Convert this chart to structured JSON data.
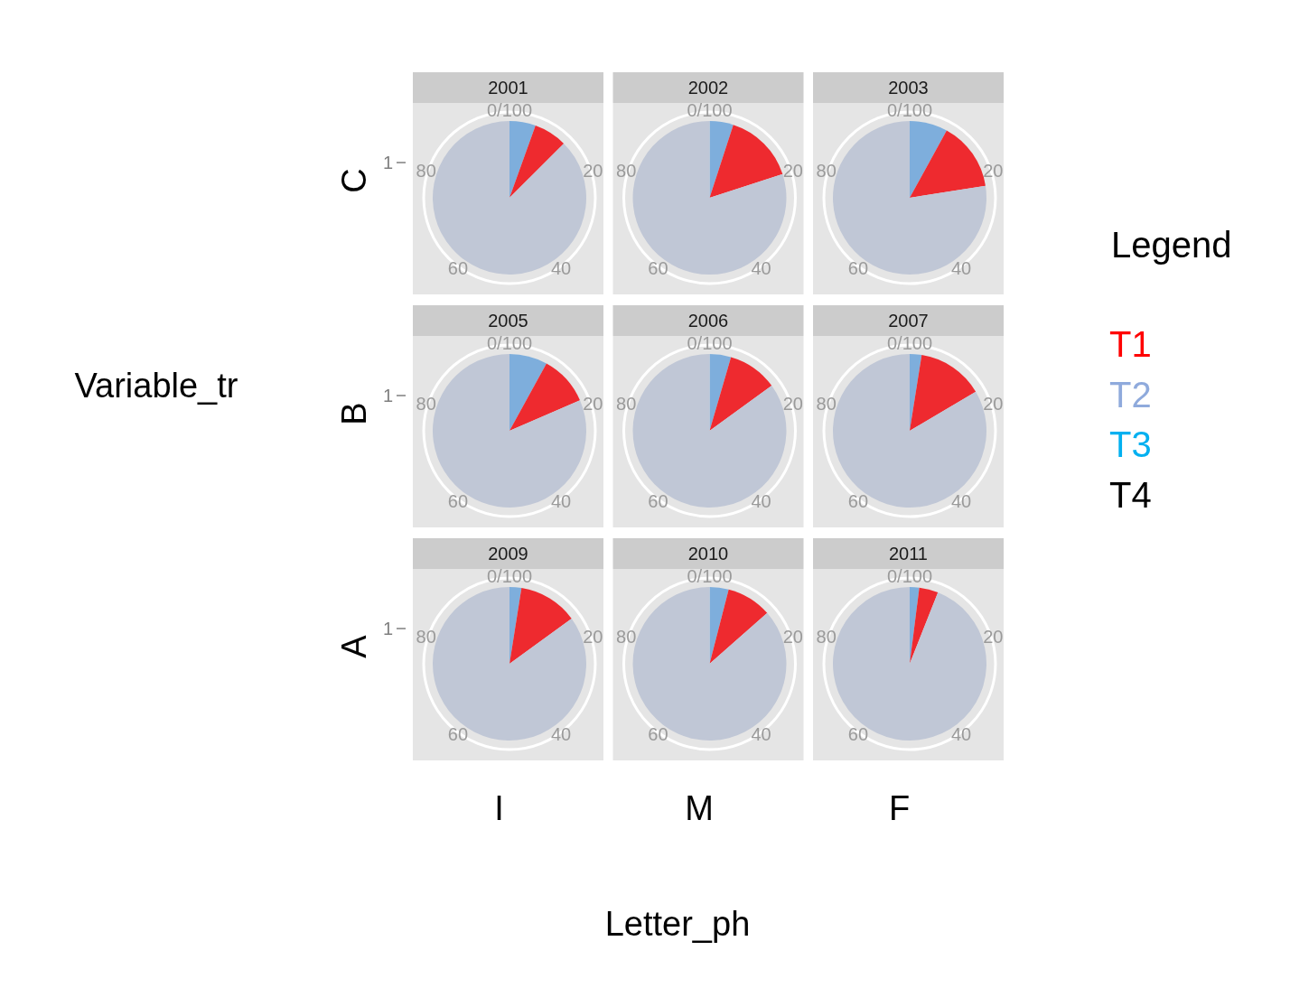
{
  "chart_data": [
    {
      "type": "pie",
      "title": "2001",
      "ylabel": "C",
      "categories": [
        null,
        null,
        null
      ],
      "values": [
        5.5,
        7,
        87.5
      ],
      "colors": [
        "#7eaedc",
        "#ee2a2f",
        "#c0c7d6"
      ],
      "annotations": [
        "0/100",
        "20",
        "40",
        "60",
        "80",
        "1"
      ]
    },
    {
      "type": "pie",
      "title": "2002",
      "categories": [
        null,
        null,
        null
      ],
      "values": [
        5,
        15,
        80
      ],
      "colors": [
        "#7eaedc",
        "#ee2a2f",
        "#c0c7d6"
      ],
      "annotations": [
        "0/100",
        "20",
        "40",
        "60",
        "80"
      ]
    },
    {
      "type": "pie",
      "title": "2003",
      "categories": [
        null,
        null,
        null
      ],
      "values": [
        8,
        14.5,
        77.5
      ],
      "colors": [
        "#7eaedc",
        "#ee2a2f",
        "#c0c7d6"
      ],
      "annotations": [
        "0/100",
        "20",
        "40",
        "60",
        "80"
      ]
    },
    {
      "type": "pie",
      "title": "2005",
      "ylabel": "B",
      "categories": [
        null,
        null,
        null
      ],
      "values": [
        8,
        10.5,
        81.5
      ],
      "colors": [
        "#7eaedc",
        "#ee2a2f",
        "#c0c7d6"
      ],
      "annotations": [
        "0/100",
        "20",
        "40",
        "60",
        "80",
        "1"
      ]
    },
    {
      "type": "pie",
      "title": "2006",
      "categories": [
        null,
        null,
        null
      ],
      "values": [
        4.5,
        10.5,
        85
      ],
      "colors": [
        "#7eaedc",
        "#ee2a2f",
        "#c0c7d6"
      ],
      "annotations": [
        "0/100",
        "20",
        "40",
        "60",
        "80"
      ]
    },
    {
      "type": "pie",
      "title": "2007",
      "categories": [
        null,
        null,
        null
      ],
      "values": [
        2.5,
        14,
        83.5
      ],
      "colors": [
        "#7eaedc",
        "#ee2a2f",
        "#c0c7d6"
      ],
      "annotations": [
        "0/100",
        "20",
        "40",
        "60",
        "80"
      ]
    },
    {
      "type": "pie",
      "title": "2009",
      "ylabel": "A",
      "xlabel": "I",
      "categories": [
        null,
        null,
        null
      ],
      "values": [
        2.5,
        12.5,
        85
      ],
      "colors": [
        "#7eaedc",
        "#ee2a2f",
        "#c0c7d6"
      ],
      "annotations": [
        "0/100",
        "20",
        "40",
        "60",
        "80",
        "1"
      ]
    },
    {
      "type": "pie",
      "title": "2010",
      "xlabel": "M",
      "categories": [
        null,
        null,
        null
      ],
      "values": [
        4,
        9.5,
        86.5
      ],
      "colors": [
        "#7eaedc",
        "#ee2a2f",
        "#c0c7d6"
      ],
      "annotations": [
        "0/100",
        "20",
        "40",
        "60",
        "80"
      ]
    },
    {
      "type": "pie",
      "title": "2011",
      "xlabel": "F",
      "categories": [
        null,
        null,
        null
      ],
      "values": [
        2,
        4,
        94
      ],
      "colors": [
        "#7eaedc",
        "#ee2a2f",
        "#c0c7d6"
      ],
      "annotations": [
        "0/100",
        "20",
        "40",
        "60",
        "80"
      ]
    },
    {
      "type": "other",
      "title": "Legend",
      "categories": [
        "T1",
        "T2",
        "T3",
        "T4"
      ],
      "colors": [
        "#ff0000",
        "#8faadc",
        "#00b0f0",
        "#000000"
      ],
      "annotations": [
        "Variable_tr",
        "Letter_ph"
      ]
    }
  ]
}
